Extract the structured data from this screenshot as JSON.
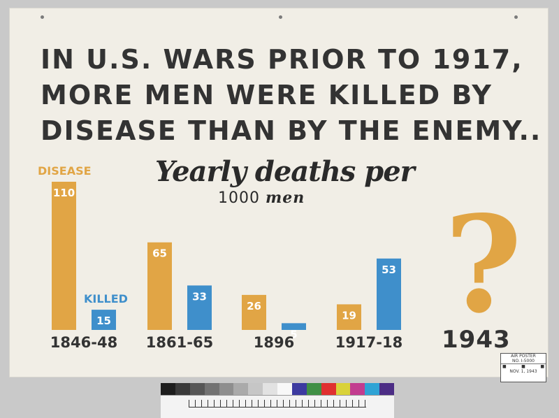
{
  "headline": {
    "line1": "IN U.S. WARS PRIOR TO 1917,",
    "line2": "MORE MEN WERE KILLED BY",
    "line3": "DISEASE THAN BY THE ENEMY.."
  },
  "subtitle": {
    "line1": "Yearly deaths per",
    "number": "1000",
    "unit": "men"
  },
  "chart_data": {
    "type": "bar",
    "title": "Yearly deaths per 1000 men",
    "categories": [
      "1846-48",
      "1861-65",
      "1896",
      "1917-18"
    ],
    "series": [
      {
        "name": "DISEASE",
        "color": "#e1a545",
        "values": [
          110,
          65,
          26,
          19
        ]
      },
      {
        "name": "KILLED",
        "color": "#3f8fcb",
        "values": [
          15,
          33,
          5,
          53
        ]
      }
    ],
    "ylim": [
      0,
      110
    ],
    "grid": false,
    "annotation": {
      "symbol": "?",
      "label": "1943"
    }
  },
  "stamp": {
    "title": "AIR POSTER",
    "number": "NO. I-5000",
    "date": "NOV. 1, 1943"
  },
  "colors": {
    "disease": "#e1a545",
    "killed": "#3f8fcb",
    "text": "#333333",
    "paper": "#f1eee6"
  },
  "color_card": [
    "#1d1d1d",
    "#3a3a3a",
    "#565656",
    "#727272",
    "#8e8e8e",
    "#aaaaaa",
    "#c6c6c6",
    "#e2e2e2",
    "#f8f8f8",
    "#3c3aa0",
    "#3f8f45",
    "#e03030",
    "#d9d23a",
    "#c23c8f",
    "#2fa3d5",
    "#4c2d85"
  ]
}
